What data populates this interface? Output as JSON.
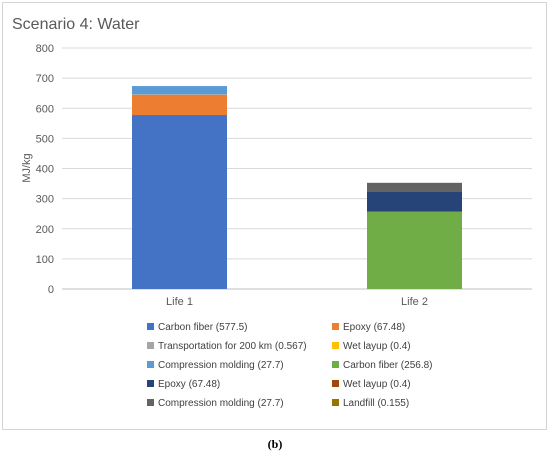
{
  "caption": "(b)",
  "chart_data": {
    "type": "bar",
    "stacked": true,
    "title": "Scenario 4: Water",
    "ylabel": "MJ/kg",
    "xlabel": "",
    "ylim": [
      0,
      800
    ],
    "yticks": [
      0,
      100,
      200,
      300,
      400,
      500,
      600,
      700,
      800
    ],
    "grid": true,
    "legend_position": "bottom",
    "categories": [
      "Life 1",
      "Life 2"
    ],
    "series": [
      {
        "name": "Carbon fiber (577.5)",
        "color": "#4472c4",
        "values": [
          577.5,
          0
        ]
      },
      {
        "name": "Epoxy (67.48)",
        "color": "#ed7d31",
        "values": [
          67.48,
          0
        ]
      },
      {
        "name": "Transportation for 200 km (0.567)",
        "color": "#a5a5a5",
        "values": [
          0.567,
          0
        ]
      },
      {
        "name": "Wet layup (0.4)",
        "color": "#ffc000",
        "values": [
          0.4,
          0
        ]
      },
      {
        "name": "Compression molding (27.7)",
        "color": "#5b9bd5",
        "values": [
          27.7,
          0
        ]
      },
      {
        "name": "Carbon fiber (256.8)",
        "color": "#70ad47",
        "values": [
          0,
          256.8
        ]
      },
      {
        "name": "Epoxy (67.48)",
        "color": "#264478",
        "values": [
          0,
          67.48
        ]
      },
      {
        "name": "Wet layup (0.4)",
        "color": "#9e480e",
        "values": [
          0,
          0.4
        ]
      },
      {
        "name": "Compression molding (27.7)",
        "color": "#636363",
        "values": [
          0,
          27.7
        ]
      },
      {
        "name": "Landfill (0.155)",
        "color": "#997300",
        "values": [
          0,
          0.155
        ]
      }
    ]
  }
}
